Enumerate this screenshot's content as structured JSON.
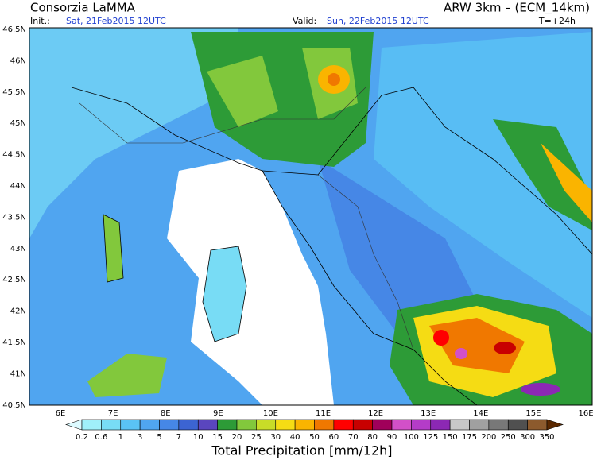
{
  "header": {
    "title_left": "Consorzia LaMMA",
    "title_right": "ARW 3km – (ECM_14km)",
    "init_label": "Init.:",
    "init_value": "Sat, 21Feb2015 12UTC",
    "valid_label": "Valid:",
    "valid_value": "Sun, 22Feb2015 12UTC",
    "lead": "T=+24h"
  },
  "map": {
    "lat_labels": [
      "46.5N",
      "46N",
      "45.5N",
      "45N",
      "44.5N",
      "44N",
      "43.5N",
      "43N",
      "42.5N",
      "42N",
      "41.5N",
      "41N",
      "40.5N"
    ],
    "lon_labels": [
      "6E",
      "7E",
      "8E",
      "9E",
      "10E",
      "11E",
      "12E",
      "13E",
      "14E",
      "15E",
      "16E"
    ]
  },
  "colorbar": {
    "labels": [
      0.2,
      0.6,
      1,
      3,
      5,
      7,
      10,
      15,
      20,
      25,
      30,
      40,
      50,
      60,
      70,
      80,
      90,
      100,
      125,
      150,
      175,
      200,
      250,
      300,
      350
    ],
    "colors": [
      "#dcfaff",
      "#a0f0fa",
      "#78dcf5",
      "#5ac3f5",
      "#50a5f0",
      "#4687e6",
      "#3c64d2",
      "#5a46be",
      "#2d9b37",
      "#82c83c",
      "#c8dc28",
      "#f5dc14",
      "#fab400",
      "#f07800",
      "#ff0000",
      "#c80000",
      "#a0005a",
      "#d250c8",
      "#b43cc8",
      "#8c28b4",
      "#c8c8c8",
      "#a0a0a0",
      "#787878",
      "#505050",
      "#8c5a2d",
      "#5a2800"
    ],
    "caption": "Total Precipitation [mm/12h]"
  }
}
